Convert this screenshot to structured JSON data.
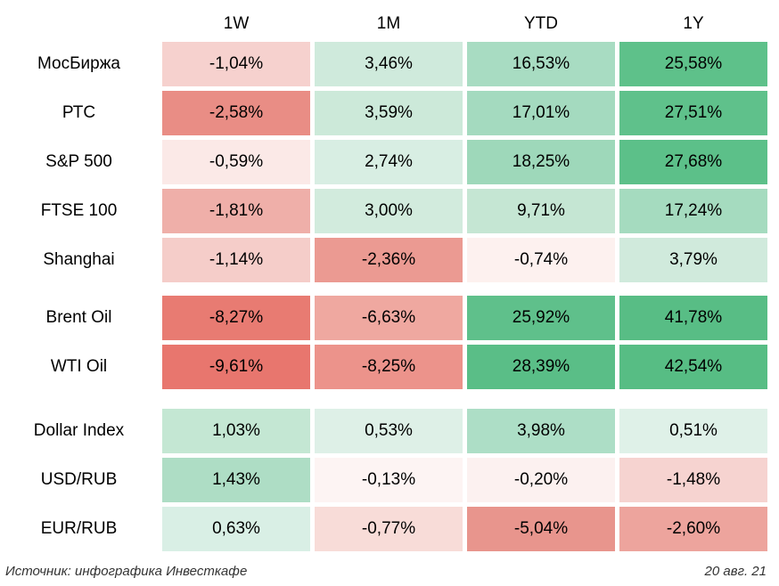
{
  "footer": {
    "source": "Источник: инфографика Инвесткафе",
    "date": "20 авг. 21"
  },
  "chart_data": {
    "type": "heatmap",
    "title": "",
    "columns": [
      "1W",
      "1M",
      "YTD",
      "1Y"
    ],
    "value_unit": "%",
    "decimal_separator": ",",
    "color_scale": {
      "negative_max": "#e8766e",
      "zero": "#ffffff",
      "positive_max": "#55bc82"
    },
    "sections": [
      {
        "name": "equity-indices",
        "rows": [
          {
            "label": "МосБиржа",
            "values": [
              -1.04,
              3.46,
              16.53,
              25.58
            ],
            "display": [
              "-1,04%",
              "3,46%",
              "16,53%",
              "25,58%"
            ],
            "colors": [
              "#f6d1ce",
              "#cfeadc",
              "#a8dcc2",
              "#5ec18a"
            ]
          },
          {
            "label": "РТС",
            "values": [
              -2.58,
              3.59,
              17.01,
              27.51
            ],
            "display": [
              "-2,58%",
              "3,59%",
              "17,01%",
              "27,51%"
            ],
            "colors": [
              "#e98d85",
              "#cce9d9",
              "#a4dabf",
              "#5fc18b"
            ]
          },
          {
            "label": "S&P 500",
            "values": [
              -0.59,
              2.74,
              18.25,
              27.68
            ],
            "display": [
              "-0,59%",
              "2,74%",
              "18,25%",
              "27,68%"
            ],
            "colors": [
              "#fbe9e7",
              "#d8eee3",
              "#9ed8ba",
              "#5cc089"
            ]
          },
          {
            "label": "FTSE 100",
            "values": [
              -1.81,
              3.0,
              9.71,
              17.24
            ],
            "display": [
              "-1,81%",
              "3,00%",
              "9,71%",
              "17,24%"
            ],
            "colors": [
              "#efafa9",
              "#d2ebdd",
              "#c5e6d3",
              "#a5dbbf"
            ]
          },
          {
            "label": "Shanghai",
            "values": [
              -1.14,
              -2.36,
              -0.74,
              3.79
            ],
            "display": [
              "-1,14%",
              "-2,36%",
              "-0,74%",
              "3,79%"
            ],
            "colors": [
              "#f5cdc9",
              "#eb9a92",
              "#fdf1ef",
              "#d0eadc"
            ]
          }
        ]
      },
      {
        "name": "oil",
        "rows": [
          {
            "label": "Brent Oil",
            "values": [
              -8.27,
              -6.63,
              25.92,
              41.78
            ],
            "display": [
              "-8,27%",
              "-6,63%",
              "25,92%",
              "41,78%"
            ],
            "colors": [
              "#e87b72",
              "#efa8a0",
              "#5fc08b",
              "#58bd85"
            ]
          },
          {
            "label": "WTI Oil",
            "values": [
              -9.61,
              -8.25,
              28.39,
              42.54
            ],
            "display": [
              "-9,61%",
              "-8,25%",
              "28,39%",
              "42,54%"
            ],
            "colors": [
              "#e8766e",
              "#ec938b",
              "#5abe87",
              "#57bd84"
            ]
          }
        ]
      },
      {
        "name": "currencies",
        "rows": [
          {
            "label": "Dollar Index",
            "values": [
              1.03,
              0.53,
              3.98,
              0.51
            ],
            "display": [
              "1,03%",
              "0,53%",
              "3,98%",
              "0,51%"
            ],
            "colors": [
              "#c4e7d3",
              "#def0e7",
              "#addec6",
              "#dff1e8"
            ]
          },
          {
            "label": "USD/RUB",
            "values": [
              1.43,
              -0.13,
              -0.2,
              -1.48
            ],
            "display": [
              "1,43%",
              "-0,13%",
              "-0,20%",
              "-1,48%"
            ],
            "colors": [
              "#aeddc5",
              "#fdf4f3",
              "#fcf1f0",
              "#f6d3d0"
            ]
          },
          {
            "label": "EUR/RUB",
            "values": [
              0.63,
              -0.77,
              -5.04,
              -2.6
            ],
            "display": [
              "0,63%",
              "-0,77%",
              "-5,04%",
              "-2,60%"
            ],
            "colors": [
              "#d9efe5",
              "#f8dcd8",
              "#e8958d",
              "#eda49d"
            ]
          }
        ]
      }
    ]
  }
}
